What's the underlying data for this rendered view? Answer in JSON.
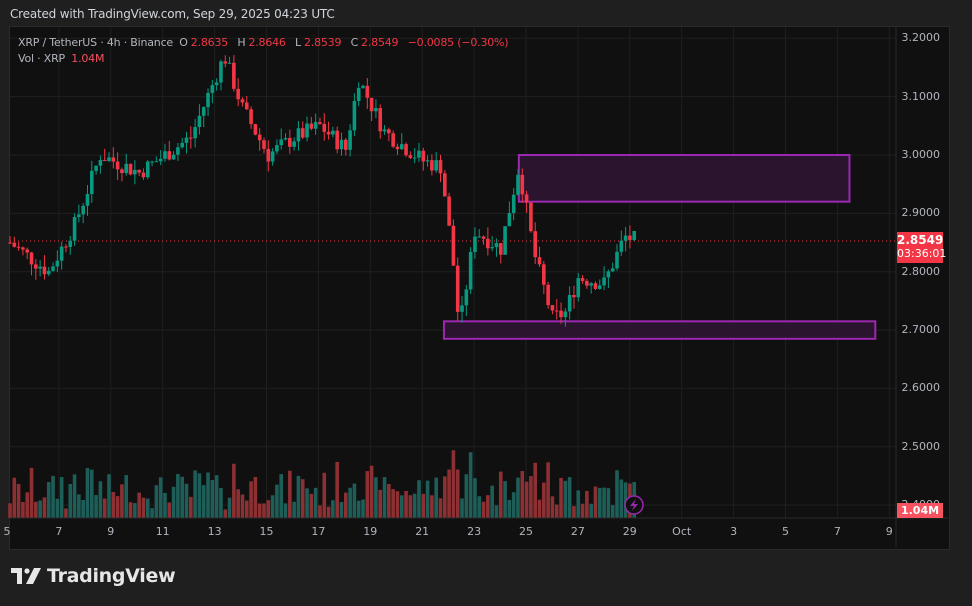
{
  "header": {
    "credit": "Created with TradingView.com, Sep 29, 2025 04:23 UTC"
  },
  "legend": {
    "symbol": "XRP / TetherUS · 4h · Binance",
    "open_label": "O",
    "open": "2.8635",
    "high_label": "H",
    "high": "2.8646",
    "low_label": "L",
    "low": "2.8539",
    "close_label": "C",
    "close": "2.8549",
    "change": "−0.0085 (−0.30%)",
    "volume_label": "Vol · XRP",
    "volume": "1.04M"
  },
  "price_badge": {
    "price": "2.8549",
    "countdown": "03:36:01"
  },
  "volume_badge": "1.04M",
  "footer": {
    "brand": "TradingView"
  },
  "colors": {
    "up": "#089981",
    "down": "#f23645",
    "vol_up": "#1d5e58",
    "vol_down": "#8c3033",
    "zone_stroke": "#9c27b0",
    "zone_fill": "#2c1530",
    "background": "#101010"
  },
  "chart_data": {
    "type": "candlestick",
    "title": "XRP / TetherUS · 4h · Binance",
    "interval": "4h",
    "ohlc_last": {
      "open": 2.8635,
      "high": 2.8646,
      "low": 2.8539,
      "close": 2.8549,
      "change": -0.0085,
      "change_pct": -0.3
    },
    "y_axis": {
      "ticks": [
        "3.2000",
        "3.1000",
        "3.0000",
        "2.9000",
        "2.8000",
        "2.7000",
        "2.6000",
        "2.5000",
        "2.4000"
      ],
      "range": [
        2.38,
        3.22
      ]
    },
    "x_axis": {
      "ticks": [
        "5",
        "7",
        "9",
        "11",
        "13",
        "15",
        "17",
        "19",
        "21",
        "23",
        "25",
        "27",
        "29",
        "Oct",
        "3",
        "5",
        "7",
        "9"
      ]
    },
    "current_price": 2.8549,
    "countdown": "03:36:01",
    "volume_last": "1.04M",
    "zones": [
      {
        "name": "resistance-zone",
        "from_date": "24.7",
        "to_date": "Oct 7.5",
        "price_top": 3.0,
        "price_bottom": 2.92
      },
      {
        "name": "support-zone",
        "from_date": "21.8",
        "to_date": "Oct 8.5",
        "price_top": 2.715,
        "price_bottom": 2.685
      }
    ],
    "path_keypoints": [
      {
        "date": "5",
        "price": 2.85
      },
      {
        "date": "6.5",
        "price": 2.8
      },
      {
        "date": "7.5",
        "price": 2.88
      },
      {
        "date": "8.5",
        "price": 3.0
      },
      {
        "date": "10",
        "price": 2.97
      },
      {
        "date": "12",
        "price": 3.03
      },
      {
        "date": "13.3",
        "price": 3.17
      },
      {
        "date": "14",
        "price": 3.08
      },
      {
        "date": "15",
        "price": 3.0
      },
      {
        "date": "16",
        "price": 3.03
      },
      {
        "date": "17",
        "price": 3.05
      },
      {
        "date": "18",
        "price": 3.01
      },
      {
        "date": "18.5",
        "price": 3.13
      },
      {
        "date": "19.5",
        "price": 3.04
      },
      {
        "date": "21",
        "price": 2.99
      },
      {
        "date": "21.7",
        "price": 2.98
      },
      {
        "date": "22.2",
        "price": 2.8
      },
      {
        "date": "22.4",
        "price": 2.7
      },
      {
        "date": "23",
        "price": 2.87
      },
      {
        "date": "24",
        "price": 2.84
      },
      {
        "date": "24.7",
        "price": 2.98
      },
      {
        "date": "25.3",
        "price": 2.83
      },
      {
        "date": "26",
        "price": 2.72
      },
      {
        "date": "26.5",
        "price": 2.73
      },
      {
        "date": "27",
        "price": 2.79
      },
      {
        "date": "28",
        "price": 2.78
      },
      {
        "date": "28.8",
        "price": 2.86
      },
      {
        "date": "29.2",
        "price": 2.855
      }
    ],
    "grid": true,
    "legend_position": "top-left"
  }
}
